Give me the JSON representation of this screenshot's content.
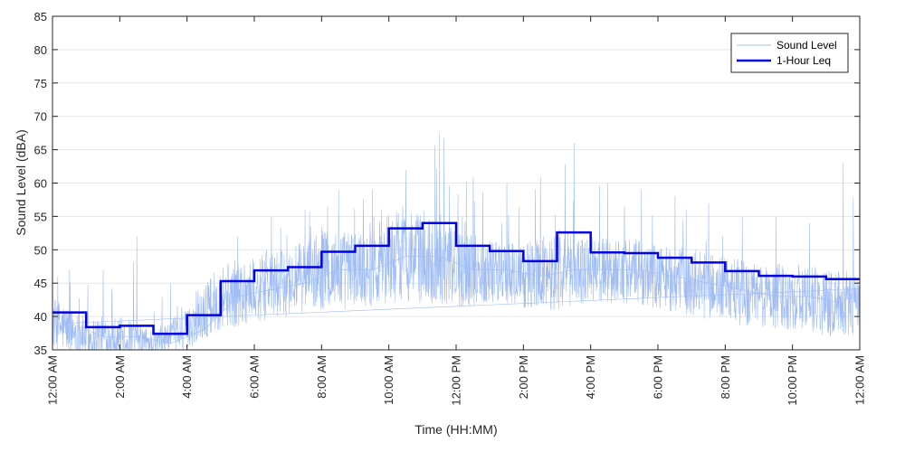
{
  "chart_data": {
    "type": "line",
    "xlabel": "Time (HH:MM)",
    "ylabel": "Sound Level (dBA)",
    "ylim": [
      35,
      85
    ],
    "yticks": [
      35,
      40,
      45,
      50,
      55,
      60,
      65,
      70,
      75,
      80,
      85
    ],
    "xlim_hours": [
      0,
      24
    ],
    "xticks": [
      {
        "hour": 0,
        "label": "12:00 AM"
      },
      {
        "hour": 2,
        "label": "2:00 AM"
      },
      {
        "hour": 4,
        "label": "4:00 AM"
      },
      {
        "hour": 6,
        "label": "6:00 AM"
      },
      {
        "hour": 8,
        "label": "8:00 AM"
      },
      {
        "hour": 10,
        "label": "10:00 AM"
      },
      {
        "hour": 12,
        "label": "12:00 PM"
      },
      {
        "hour": 14,
        "label": "2:00 PM"
      },
      {
        "hour": 16,
        "label": "4:00 PM"
      },
      {
        "hour": 18,
        "label": "6:00 PM"
      },
      {
        "hour": 20,
        "label": "8:00 PM"
      },
      {
        "hour": 22,
        "label": "10:00 PM"
      },
      {
        "hour": 24,
        "label": "12:00 AM"
      }
    ],
    "grid": "horizontal",
    "legend_position": "top-right",
    "series": [
      {
        "name": "Sound Level",
        "style": "thin-line",
        "color": "#9fbcf5",
        "hourly_profile": [
          {
            "hour": 0,
            "baseline": 39,
            "spread": 4,
            "peak": 47
          },
          {
            "hour": 1,
            "baseline": 37,
            "spread": 3,
            "peak": 47
          },
          {
            "hour": 2,
            "baseline": 37,
            "spread": 3,
            "peak": 52
          },
          {
            "hour": 3,
            "baseline": 36,
            "spread": 2,
            "peak": 45
          },
          {
            "hour": 4,
            "baseline": 38,
            "spread": 3,
            "peak": 44
          },
          {
            "hour": 5,
            "baseline": 43,
            "spread": 5,
            "peak": 52
          },
          {
            "hour": 6,
            "baseline": 44,
            "spread": 5,
            "peak": 55
          },
          {
            "hour": 7,
            "baseline": 45,
            "spread": 5,
            "peak": 56
          },
          {
            "hour": 8,
            "baseline": 47,
            "spread": 6,
            "peak": 59
          },
          {
            "hour": 9,
            "baseline": 47,
            "spread": 6,
            "peak": 59
          },
          {
            "hour": 10,
            "baseline": 49,
            "spread": 7,
            "peak": 62
          },
          {
            "hour": 11,
            "baseline": 49,
            "spread": 7,
            "peak": 67.5
          },
          {
            "hour": 12,
            "baseline": 47,
            "spread": 6,
            "peak": 61
          },
          {
            "hour": 13,
            "baseline": 47,
            "spread": 5,
            "peak": 60
          },
          {
            "hour": 14,
            "baseline": 46,
            "spread": 5,
            "peak": 61
          },
          {
            "hour": 15,
            "baseline": 47,
            "spread": 6,
            "peak": 66
          },
          {
            "hour": 16,
            "baseline": 47,
            "spread": 5,
            "peak": 60
          },
          {
            "hour": 17,
            "baseline": 47,
            "spread": 5,
            "peak": 59
          },
          {
            "hour": 18,
            "baseline": 46,
            "spread": 5,
            "peak": 58
          },
          {
            "hour": 19,
            "baseline": 45,
            "spread": 5,
            "peak": 57
          },
          {
            "hour": 20,
            "baseline": 44,
            "spread": 5,
            "peak": 55
          },
          {
            "hour": 21,
            "baseline": 43,
            "spread": 5,
            "peak": 55
          },
          {
            "hour": 22,
            "baseline": 43,
            "spread": 5,
            "peak": 54
          },
          {
            "hour": 23,
            "baseline": 42,
            "spread": 5,
            "peak": 63
          }
        ]
      },
      {
        "name": "1-Hour Leq",
        "style": "step",
        "color": "#0000e6",
        "hours": [
          0,
          1,
          2,
          3,
          4,
          5,
          6,
          7,
          8,
          9,
          10,
          11,
          12,
          13,
          14,
          15,
          16,
          17,
          18,
          19,
          20,
          21,
          22,
          23
        ],
        "values": [
          40.6,
          38.4,
          38.6,
          37.4,
          40.2,
          45.3,
          46.9,
          47.4,
          49.7,
          50.6,
          53.2,
          54.0,
          50.6,
          49.8,
          48.3,
          52.6,
          49.6,
          49.5,
          48.8,
          48.1,
          46.8,
          46.1,
          46.0,
          45.6
        ]
      }
    ]
  }
}
